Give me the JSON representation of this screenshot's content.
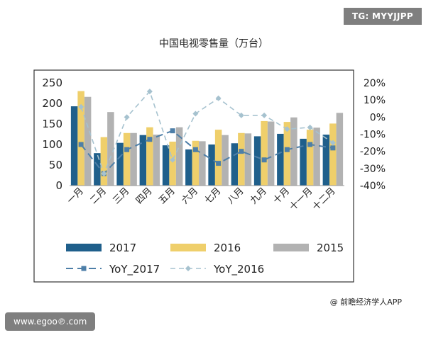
{
  "watermark_top": "TG: MYYJJPP",
  "watermark_site": "www.egoo℗.com",
  "credit": "@ 前瞻经济学人APP",
  "chart_data": {
    "type": "bar",
    "title": "中国电视零售量（万台）",
    "categories": [
      "一月",
      "二月",
      "三月",
      "四月",
      "五月",
      "六月",
      "七月",
      "八月",
      "九月",
      "十月",
      "十一月",
      "十二月"
    ],
    "series": [
      {
        "name": "2017",
        "kind": "bar",
        "axis": "left",
        "color": "#1f5f8b",
        "values": [
          193,
          79,
          104,
          123,
          98,
          88,
          100,
          103,
          120,
          126,
          114,
          124
        ]
      },
      {
        "name": "2016",
        "kind": "bar",
        "axis": "left",
        "color": "#efcf6b",
        "values": [
          230,
          118,
          128,
          142,
          107,
          109,
          136,
          128,
          157,
          155,
          136,
          151
        ]
      },
      {
        "name": "2015",
        "kind": "bar",
        "axis": "left",
        "color": "#b2b2b2",
        "values": [
          216,
          179,
          128,
          124,
          142,
          108,
          123,
          127,
          156,
          166,
          141,
          177
        ]
      },
      {
        "name": "YoY_2017",
        "kind": "line",
        "axis": "right",
        "color": "#4e7fa8",
        "values": [
          -16,
          -33,
          -19,
          -13,
          -8,
          -19,
          -27,
          -20,
          -25,
          -19,
          -16,
          -18
        ]
      },
      {
        "name": "YoY_2016",
        "kind": "line",
        "axis": "right",
        "color": "#a6c2cf",
        "values": [
          6,
          -33,
          0,
          15,
          -25,
          2,
          11,
          1,
          1,
          -7,
          -6,
          -15
        ]
      }
    ],
    "yleft": {
      "min": 0,
      "max": 250,
      "ticks": [
        "0",
        "50",
        "100",
        "150",
        "200",
        "250"
      ]
    },
    "yright": {
      "min": -40,
      "max": 20,
      "ticks": [
        "-40%",
        "-30%",
        "-20%",
        "-10%",
        "0%",
        "10%",
        "20%"
      ]
    },
    "legend_position": "bottom",
    "grid": false
  }
}
